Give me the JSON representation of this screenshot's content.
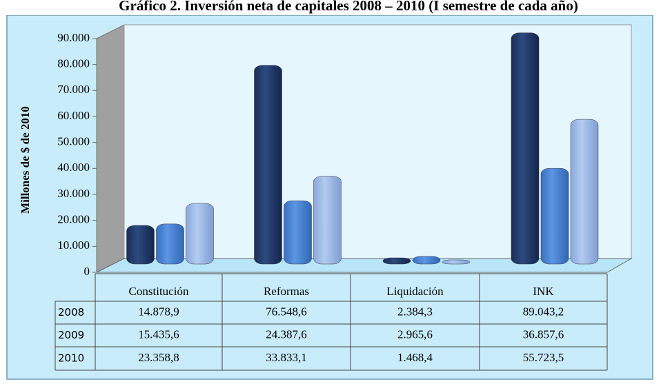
{
  "chart_data": {
    "type": "bar",
    "title": "Gráfico 2. Inversión neta de capitales 2008 – 2010 (I semestre de cada año)",
    "y_label": "Millones de $ de 2010",
    "categories": [
      "Constitución",
      "Reformas",
      "Liquidación",
      "INK"
    ],
    "series": [
      {
        "name": "2008",
        "color": "#1f3864",
        "values": [
          14878.9,
          76548.6,
          2384.3,
          89043.2
        ],
        "value_labels": [
          "14.878,9",
          "76.548,6",
          "2.384,3",
          "89.043,2"
        ]
      },
      {
        "name": "2009",
        "color": "#4a86d8",
        "values": [
          15435.6,
          24387.6,
          2965.6,
          36857.6
        ],
        "value_labels": [
          "15.435,6",
          "24.387,6",
          "2.965,6",
          "36.857,6"
        ]
      },
      {
        "name": "2010",
        "color": "#9ab8e8",
        "values": [
          23358.8,
          33833.1,
          1468.4,
          55723.5
        ],
        "value_labels": [
          "23.358,8",
          "33.833,1",
          "1.468,4",
          "55.723,5"
        ]
      }
    ],
    "ylim": [
      0,
      90000
    ],
    "yticks": [
      0,
      {
        "value": 10000,
        "label": "10.000"
      },
      {
        "value": 20000,
        "label": "20.000"
      },
      {
        "value": 30000,
        "label": "30.000"
      },
      {
        "value": 40000,
        "label": "40.000"
      },
      {
        "value": 50000,
        "label": "50.000"
      },
      {
        "value": 60000,
        "label": "60.000"
      },
      {
        "value": 70000,
        "label": "70.000"
      },
      {
        "value": 80000,
        "label": "80.000"
      },
      {
        "value": 90000,
        "label": "90.000"
      }
    ]
  }
}
